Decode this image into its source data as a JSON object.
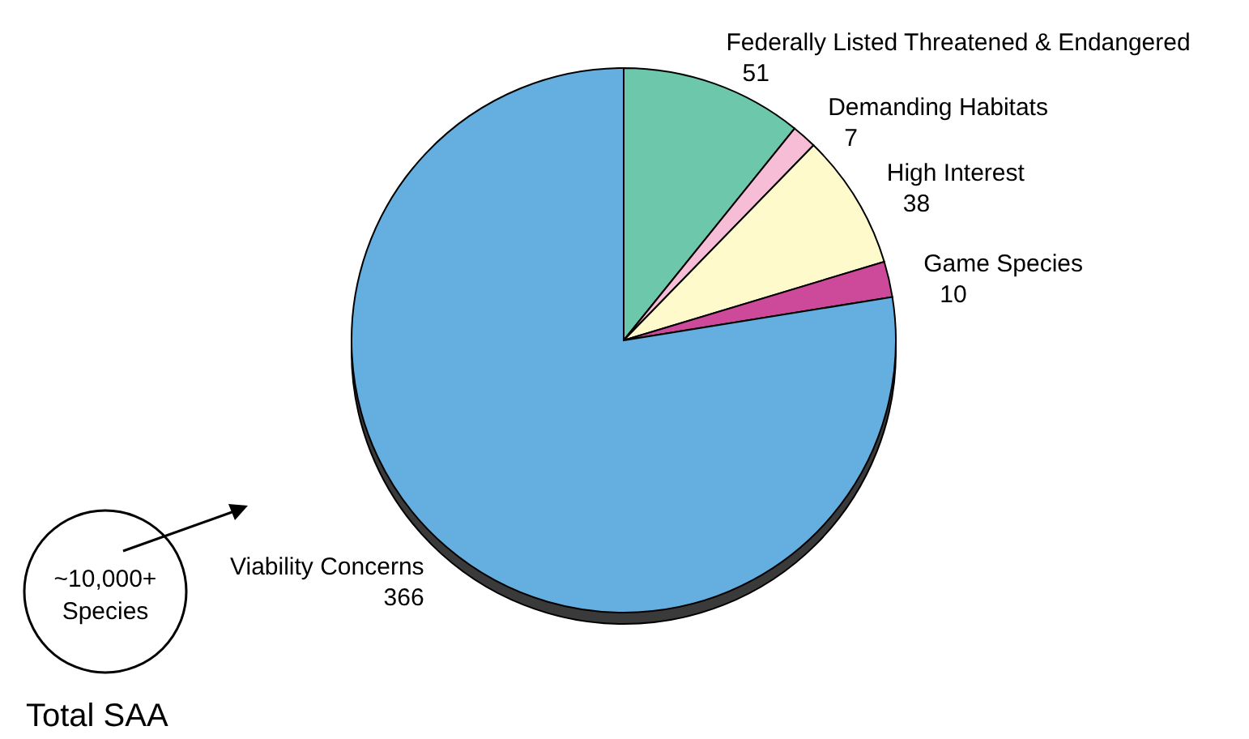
{
  "chart_data": {
    "type": "pie",
    "categories": [
      "Federally Listed Threatened & Endangered",
      "Demanding Habitats",
      "High Interest",
      "Game Species",
      "Viability Concerns"
    ],
    "values": [
      51,
      7,
      38,
      10,
      366
    ],
    "colors": [
      "#6cc7ab",
      "#f7bcd6",
      "#fffacb",
      "#cc4a99",
      "#64aee0"
    ],
    "data_labels": true,
    "annotations": [
      "~10,000+ Species",
      "Total SAA"
    ]
  }
}
